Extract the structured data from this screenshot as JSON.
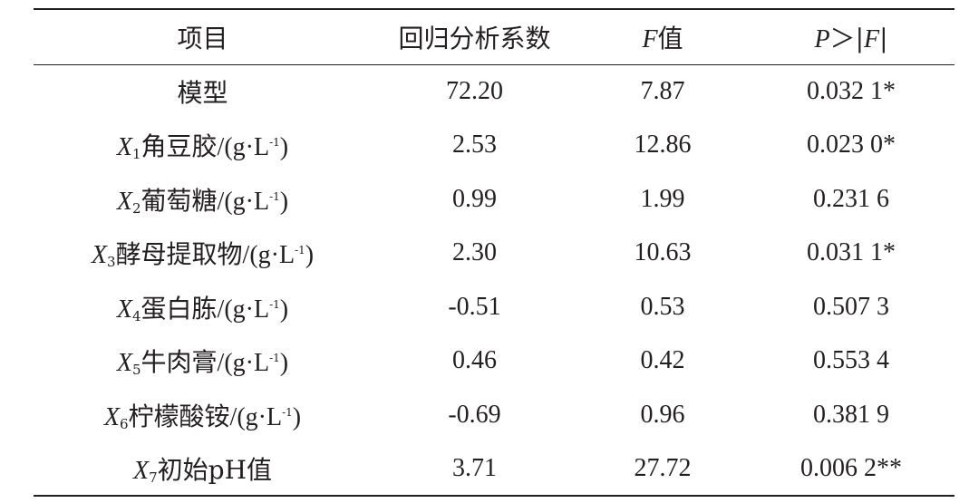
{
  "header": {
    "col1": "项目",
    "col2": "回归分析系数",
    "col3_var": "F",
    "col3_text": "值",
    "col4_var_p": "P",
    "col4_gt": "＞",
    "col4_bar_left": "|",
    "col4_var_f": "F",
    "col4_bar_right": "|"
  },
  "rows": [
    {
      "var": "",
      "sub": "",
      "name": "模型",
      "unit": "",
      "unit_sup": "",
      "unit_end": "",
      "coef": "72.20",
      "f": "7.87",
      "p": "0.032 1*"
    },
    {
      "var": "X",
      "sub": "1",
      "name": "角豆胶",
      "unit": "/(g·L",
      "unit_sup": "-1",
      "unit_end": ")",
      "coef": "2.53",
      "f": "12.86",
      "p": "0.023 0*"
    },
    {
      "var": "X",
      "sub": "2",
      "name": "葡萄糖",
      "unit": "/(g·L",
      "unit_sup": "-1",
      "unit_end": ")",
      "coef": "0.99",
      "f": "1.99",
      "p": "0.231 6"
    },
    {
      "var": "X",
      "sub": "3",
      "name": "酵母提取物",
      "unit": "/(g·L",
      "unit_sup": "-1",
      "unit_end": ")",
      "coef": "2.30",
      "f": "10.63",
      "p": "0.031 1*"
    },
    {
      "var": "X",
      "sub": "4",
      "name": "蛋白胨",
      "unit": "/(g·L",
      "unit_sup": "-1",
      "unit_end": ")",
      "coef": "-0.51",
      "f": "0.53",
      "p": "0.507 3"
    },
    {
      "var": "X",
      "sub": "5",
      "name": "牛肉膏",
      "unit": "/(g·L",
      "unit_sup": "-1",
      "unit_end": ")",
      "coef": "0.46",
      "f": "0.42",
      "p": "0.553 4"
    },
    {
      "var": "X",
      "sub": "6",
      "name": "柠檬酸铵",
      "unit": "/(g·L",
      "unit_sup": "-1",
      "unit_end": ")",
      "coef": "-0.69",
      "f": "0.96",
      "p": "0.381 9"
    },
    {
      "var": "X",
      "sub": "7",
      "name": "初始pH值",
      "unit": "",
      "unit_sup": "",
      "unit_end": "",
      "coef": "3.71",
      "f": "27.72",
      "p": "0.006 2**"
    }
  ]
}
